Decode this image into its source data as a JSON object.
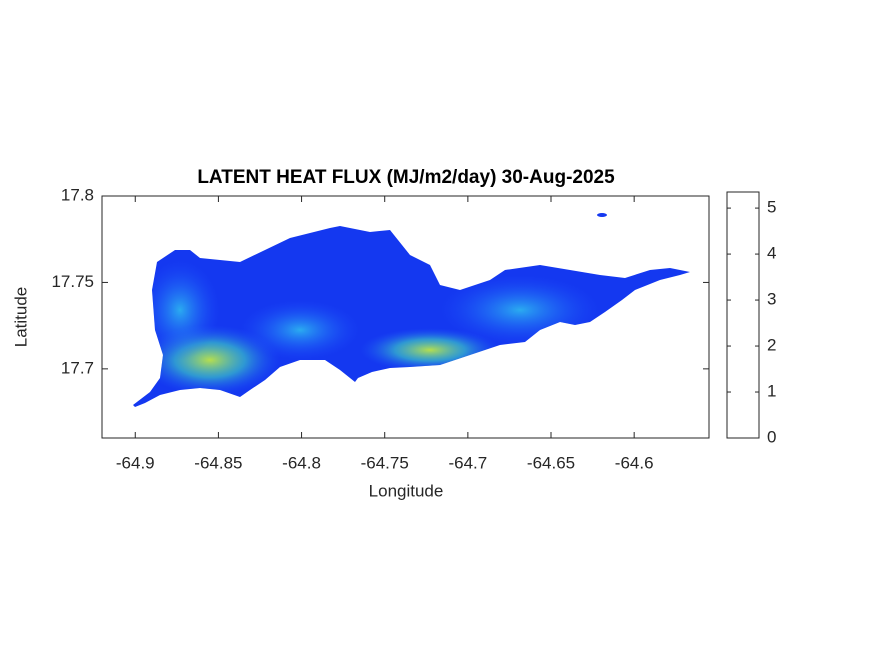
{
  "chart_data": {
    "type": "map",
    "title": "LATENT HEAT FLUX (MJ/m2/day) 30-Aug-2025",
    "x_label": "Longitude",
    "y_label": "Latitude",
    "xlim": [
      -64.92,
      -64.555
    ],
    "ylim": [
      17.66,
      17.8
    ],
    "xticks": [
      -64.9,
      -64.85,
      -64.8,
      -64.75,
      -64.7,
      -64.65,
      -64.6
    ],
    "yticks": [
      17.7,
      17.75,
      17.8
    ],
    "colorbar": {
      "clim": [
        0,
        5.35
      ],
      "ticks": [
        0,
        1,
        2,
        3,
        4,
        5
      ]
    }
  }
}
